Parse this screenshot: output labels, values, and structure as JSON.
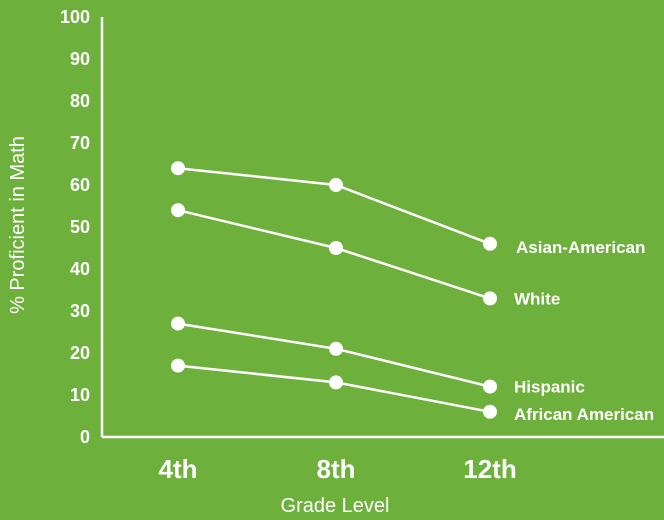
{
  "chart_data": {
    "type": "line",
    "categories": [
      "4th",
      "8th",
      "12th"
    ],
    "series": [
      {
        "name": "Asian-American",
        "values": [
          64,
          60,
          46
        ]
      },
      {
        "name": "White",
        "values": [
          54,
          45,
          33
        ]
      },
      {
        "name": "Hispanic",
        "values": [
          27,
          21,
          12
        ]
      },
      {
        "name": "African American",
        "values": [
          17,
          13,
          6
        ]
      }
    ],
    "xlabel": "Grade Level",
    "ylabel": "% Proficient in Math",
    "ylim": [
      0,
      100
    ],
    "yticks": [
      "0",
      "10",
      "20",
      "30",
      "40",
      "50",
      "60",
      "70",
      "80",
      "90",
      "100"
    ],
    "grid": false,
    "legend": "direct labels at right end of lines",
    "colors": {
      "background": "#6eb03c",
      "foreground": "#ffffff"
    }
  }
}
